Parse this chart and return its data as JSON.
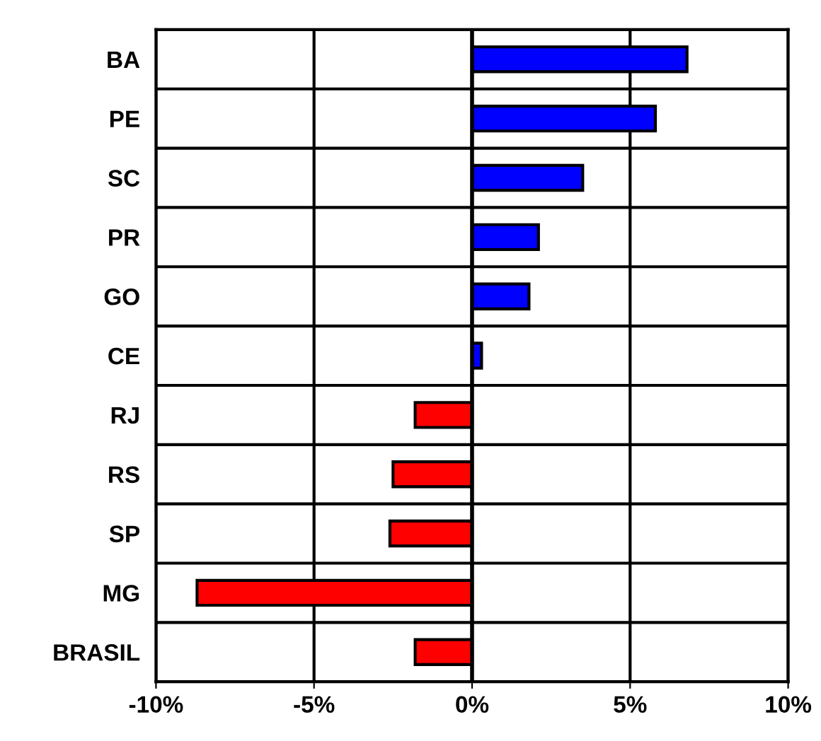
{
  "chart_data": {
    "type": "bar",
    "orientation": "horizontal",
    "categories": [
      "BA",
      "PE",
      "SC",
      "PR",
      "GO",
      "CE",
      "RJ",
      "RS",
      "SP",
      "MG",
      "BRASIL"
    ],
    "values": [
      6.8,
      5.8,
      3.5,
      2.1,
      1.8,
      0.3,
      -1.8,
      -2.5,
      -2.6,
      -8.7,
      -1.8
    ],
    "colors": [
      "#0000ff",
      "#0000ff",
      "#0000ff",
      "#0000ff",
      "#0000ff",
      "#0000ff",
      "#ff0000",
      "#ff0000",
      "#ff0000",
      "#ff0000",
      "#ff0000"
    ],
    "xlim": [
      -10,
      10
    ],
    "xticks": [
      {
        "value": -10,
        "label": "-10%"
      },
      {
        "value": -5,
        "label": "-5%"
      },
      {
        "value": 0,
        "label": "0%"
      },
      {
        "value": 5,
        "label": "5%"
      },
      {
        "value": 10,
        "label": "10%"
      }
    ],
    "grid": true
  }
}
